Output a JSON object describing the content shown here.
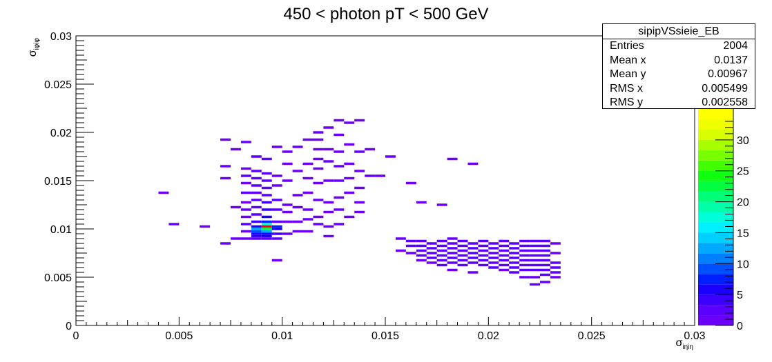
{
  "chart_data": {
    "type": "heatmap",
    "title": "450 < photon pT < 500 GeV",
    "xlabel": "σiηiη",
    "ylabel": "σiφiφ",
    "xlim": [
      0,
      0.03
    ],
    "ylim": [
      0,
      0.03
    ],
    "x_ticks": [
      "0",
      "0.005",
      "0.01",
      "0.015",
      "0.02",
      "0.025",
      "0.03"
    ],
    "y_ticks": [
      "0",
      "0.005",
      "0.01",
      "0.015",
      "0.02",
      "0.025",
      "0.03"
    ],
    "bin_width": 0.0005,
    "bin_height": 0.00025,
    "z_range": [
      0,
      35
    ],
    "z_ticks": [
      "0",
      "5",
      "10",
      "15",
      "20",
      "25",
      "30"
    ],
    "palette": [
      "#6a00f8",
      "#5a00ff",
      "#3a00ff",
      "#1a00ff",
      "#0020ff",
      "#0050ff",
      "#0080ff",
      "#00a8ff",
      "#00d0ff",
      "#00f0ff",
      "#00ffd8",
      "#00ffa8",
      "#00ff78",
      "#00ff40",
      "#10ff10",
      "#40ff00",
      "#78ff00",
      "#a8ff00",
      "#d8ff00",
      "#f0ff00",
      "#ffff00"
    ],
    "bins": [
      [
        0.00425,
        0.01375,
        1
      ],
      [
        0.00475,
        0.0105,
        1
      ],
      [
        0.00625,
        0.01025,
        1
      ],
      [
        0.00725,
        0.01925,
        1
      ],
      [
        0.00725,
        0.0165,
        1
      ],
      [
        0.00725,
        0.01525,
        1
      ],
      [
        0.00725,
        0.0085,
        1
      ],
      [
        0.00775,
        0.01825,
        1
      ],
      [
        0.00775,
        0.01225,
        1
      ],
      [
        0.00775,
        0.009,
        1
      ],
      [
        0.00825,
        0.019,
        1
      ],
      [
        0.00825,
        0.01625,
        1
      ],
      [
        0.00825,
        0.01475,
        1
      ],
      [
        0.00825,
        0.0155,
        2
      ],
      [
        0.00825,
        0.01375,
        2
      ],
      [
        0.00825,
        0.01275,
        1
      ],
      [
        0.00825,
        0.012,
        1
      ],
      [
        0.00825,
        0.01125,
        1
      ],
      [
        0.00825,
        0.0105,
        2
      ],
      [
        0.00825,
        0.00975,
        1
      ],
      [
        0.00825,
        0.009,
        1
      ],
      [
        0.00875,
        0.0175,
        2
      ],
      [
        0.00875,
        0.016,
        2
      ],
      [
        0.00875,
        0.01525,
        3
      ],
      [
        0.00875,
        0.0145,
        3
      ],
      [
        0.00875,
        0.01375,
        3
      ],
      [
        0.00875,
        0.013,
        2
      ],
      [
        0.00875,
        0.01225,
        2
      ],
      [
        0.00875,
        0.0115,
        3
      ],
      [
        0.00875,
        0.01075,
        4
      ],
      [
        0.00875,
        0.01025,
        6
      ],
      [
        0.00875,
        0.01,
        12
      ],
      [
        0.00875,
        0.00975,
        9
      ],
      [
        0.00875,
        0.0095,
        5
      ],
      [
        0.00875,
        0.00925,
        4
      ],
      [
        0.00875,
        0.009,
        3
      ],
      [
        0.00925,
        0.01725,
        2
      ],
      [
        0.00925,
        0.01575,
        2
      ],
      [
        0.00925,
        0.015,
        3
      ],
      [
        0.00925,
        0.01425,
        3
      ],
      [
        0.00925,
        0.0135,
        3
      ],
      [
        0.00925,
        0.01275,
        4
      ],
      [
        0.00925,
        0.012,
        4
      ],
      [
        0.00925,
        0.01125,
        5
      ],
      [
        0.00925,
        0.01075,
        8
      ],
      [
        0.00925,
        0.0105,
        18
      ],
      [
        0.00925,
        0.01025,
        34
      ],
      [
        0.00925,
        0.01,
        22
      ],
      [
        0.00925,
        0.00975,
        12
      ],
      [
        0.00925,
        0.0095,
        6
      ],
      [
        0.00925,
        0.00925,
        5
      ],
      [
        0.00925,
        0.009,
        3
      ],
      [
        0.00975,
        0.0185,
        1
      ],
      [
        0.00975,
        0.0155,
        1
      ],
      [
        0.00975,
        0.0145,
        1
      ],
      [
        0.00975,
        0.013,
        2
      ],
      [
        0.00975,
        0.012,
        2
      ],
      [
        0.00975,
        0.01075,
        3
      ],
      [
        0.00975,
        0.01025,
        8
      ],
      [
        0.00975,
        0.01,
        6
      ],
      [
        0.00975,
        0.0095,
        4
      ],
      [
        0.00975,
        0.009,
        2
      ],
      [
        0.00975,
        0.00675,
        1
      ],
      [
        0.01025,
        0.018,
        1
      ],
      [
        0.01025,
        0.01675,
        1
      ],
      [
        0.01025,
        0.015,
        1
      ],
      [
        0.01025,
        0.0125,
        1
      ],
      [
        0.01025,
        0.01175,
        1
      ],
      [
        0.01025,
        0.01075,
        1
      ],
      [
        0.01025,
        0.0095,
        1
      ],
      [
        0.01075,
        0.0185,
        1
      ],
      [
        0.01075,
        0.016,
        1
      ],
      [
        0.01075,
        0.0135,
        1
      ],
      [
        0.01075,
        0.01225,
        1
      ],
      [
        0.01075,
        0.01075,
        1
      ],
      [
        0.01075,
        0.00975,
        1
      ],
      [
        0.01125,
        0.01925,
        1
      ],
      [
        0.01125,
        0.01675,
        1
      ],
      [
        0.01125,
        0.01525,
        1
      ],
      [
        0.01125,
        0.01375,
        1
      ],
      [
        0.01125,
        0.012,
        1
      ],
      [
        0.01125,
        0.011,
        1
      ],
      [
        0.01125,
        0.00975,
        1
      ],
      [
        0.01175,
        0.02,
        1
      ],
      [
        0.01175,
        0.01925,
        1
      ],
      [
        0.01175,
        0.01825,
        1
      ],
      [
        0.01175,
        0.01725,
        1
      ],
      [
        0.01175,
        0.01625,
        1
      ],
      [
        0.01175,
        0.01475,
        1
      ],
      [
        0.01175,
        0.013,
        1
      ],
      [
        0.01175,
        0.01125,
        1
      ],
      [
        0.01175,
        0.0105,
        1
      ],
      [
        0.01225,
        0.0205,
        1
      ],
      [
        0.01225,
        0.01825,
        1
      ],
      [
        0.01225,
        0.017,
        1
      ],
      [
        0.01225,
        0.015,
        1
      ],
      [
        0.01225,
        0.01275,
        1
      ],
      [
        0.01225,
        0.01175,
        1
      ],
      [
        0.01225,
        0.01025,
        1
      ],
      [
        0.01225,
        0.00925,
        1
      ],
      [
        0.01275,
        0.02125,
        1
      ],
      [
        0.01275,
        0.01975,
        1
      ],
      [
        0.01275,
        0.018,
        1
      ],
      [
        0.01275,
        0.0165,
        1
      ],
      [
        0.01275,
        0.015,
        1
      ],
      [
        0.01275,
        0.01325,
        1
      ],
      [
        0.01275,
        0.012,
        1
      ],
      [
        0.01275,
        0.0105,
        1
      ],
      [
        0.01325,
        0.021,
        1
      ],
      [
        0.01325,
        0.01875,
        1
      ],
      [
        0.01325,
        0.01675,
        1
      ],
      [
        0.01325,
        0.01525,
        1
      ],
      [
        0.01325,
        0.01375,
        1
      ],
      [
        0.01325,
        0.01125,
        1
      ],
      [
        0.01375,
        0.02125,
        1
      ],
      [
        0.01375,
        0.018,
        1
      ],
      [
        0.01375,
        0.016,
        1
      ],
      [
        0.01375,
        0.01425,
        1
      ],
      [
        0.01375,
        0.01275,
        1
      ],
      [
        0.01375,
        0.01175,
        1
      ],
      [
        0.01425,
        0.01825,
        1
      ],
      [
        0.01425,
        0.0155,
        1
      ],
      [
        0.01475,
        0.0155,
        1
      ],
      [
        0.01525,
        0.0175,
        1
      ],
      [
        0.01625,
        0.01475,
        1
      ],
      [
        0.01675,
        0.01275,
        1
      ],
      [
        0.01775,
        0.0125,
        1
      ],
      [
        0.01825,
        0.01725,
        1
      ],
      [
        0.01925,
        0.01675,
        1
      ],
      [
        0.01575,
        0.009,
        1
      ],
      [
        0.01575,
        0.00775,
        1
      ],
      [
        0.01625,
        0.00875,
        2
      ],
      [
        0.01625,
        0.00825,
        2
      ],
      [
        0.01625,
        0.0075,
        1
      ],
      [
        0.01675,
        0.00875,
        2
      ],
      [
        0.01675,
        0.00825,
        2
      ],
      [
        0.01675,
        0.00775,
        2
      ],
      [
        0.01675,
        0.00725,
        2
      ],
      [
        0.01675,
        0.00675,
        1
      ],
      [
        0.01725,
        0.0085,
        3
      ],
      [
        0.01725,
        0.008,
        2
      ],
      [
        0.01725,
        0.0075,
        3
      ],
      [
        0.01725,
        0.007,
        2
      ],
      [
        0.01725,
        0.0065,
        1
      ],
      [
        0.01775,
        0.00875,
        2
      ],
      [
        0.01775,
        0.00825,
        3
      ],
      [
        0.01775,
        0.00775,
        3
      ],
      [
        0.01775,
        0.00725,
        3
      ],
      [
        0.01775,
        0.00675,
        2
      ],
      [
        0.01775,
        0.00625,
        2
      ],
      [
        0.01825,
        0.009,
        1
      ],
      [
        0.01825,
        0.0085,
        2
      ],
      [
        0.01825,
        0.008,
        3
      ],
      [
        0.01825,
        0.0075,
        3
      ],
      [
        0.01825,
        0.007,
        3
      ],
      [
        0.01825,
        0.0065,
        2
      ],
      [
        0.01825,
        0.00575,
        1
      ],
      [
        0.01875,
        0.00875,
        2
      ],
      [
        0.01875,
        0.00825,
        3
      ],
      [
        0.01875,
        0.00775,
        3
      ],
      [
        0.01875,
        0.00725,
        3
      ],
      [
        0.01875,
        0.00675,
        2
      ],
      [
        0.01875,
        0.00625,
        2
      ],
      [
        0.01925,
        0.0085,
        2
      ],
      [
        0.01925,
        0.008,
        3
      ],
      [
        0.01925,
        0.0075,
        3
      ],
      [
        0.01925,
        0.007,
        3
      ],
      [
        0.01925,
        0.0065,
        2
      ],
      [
        0.01925,
        0.0055,
        1
      ],
      [
        0.01975,
        0.00875,
        2
      ],
      [
        0.01975,
        0.00825,
        3
      ],
      [
        0.01975,
        0.00775,
        2
      ],
      [
        0.01975,
        0.00725,
        3
      ],
      [
        0.01975,
        0.00675,
        2
      ],
      [
        0.01975,
        0.00625,
        2
      ],
      [
        0.02025,
        0.0085,
        2
      ],
      [
        0.02025,
        0.008,
        2
      ],
      [
        0.02025,
        0.0075,
        3
      ],
      [
        0.02025,
        0.007,
        3
      ],
      [
        0.02025,
        0.0065,
        2
      ],
      [
        0.02025,
        0.006,
        2
      ],
      [
        0.02075,
        0.00875,
        2
      ],
      [
        0.02075,
        0.00825,
        3
      ],
      [
        0.02075,
        0.00775,
        3
      ],
      [
        0.02075,
        0.00725,
        3
      ],
      [
        0.02075,
        0.00675,
        3
      ],
      [
        0.02075,
        0.00625,
        2
      ],
      [
        0.02075,
        0.00575,
        1
      ],
      [
        0.02125,
        0.0085,
        2
      ],
      [
        0.02125,
        0.008,
        3
      ],
      [
        0.02125,
        0.0075,
        3
      ],
      [
        0.02125,
        0.007,
        3
      ],
      [
        0.02125,
        0.0065,
        3
      ],
      [
        0.02125,
        0.006,
        2
      ],
      [
        0.02125,
        0.0055,
        2
      ],
      [
        0.02175,
        0.00875,
        2
      ],
      [
        0.02175,
        0.00825,
        3
      ],
      [
        0.02175,
        0.00775,
        3
      ],
      [
        0.02175,
        0.00725,
        3
      ],
      [
        0.02175,
        0.00675,
        3
      ],
      [
        0.02175,
        0.00625,
        3
      ],
      [
        0.02175,
        0.00575,
        2
      ],
      [
        0.02175,
        0.005,
        1
      ],
      [
        0.02225,
        0.00875,
        2
      ],
      [
        0.02225,
        0.00825,
        3
      ],
      [
        0.02225,
        0.00775,
        3
      ],
      [
        0.02225,
        0.00725,
        3
      ],
      [
        0.02225,
        0.00675,
        3
      ],
      [
        0.02225,
        0.00625,
        3
      ],
      [
        0.02225,
        0.00575,
        2
      ],
      [
        0.02225,
        0.005,
        1
      ],
      [
        0.02225,
        0.00425,
        1
      ],
      [
        0.02275,
        0.00875,
        2
      ],
      [
        0.02275,
        0.00825,
        2
      ],
      [
        0.02275,
        0.00775,
        2
      ],
      [
        0.02275,
        0.00725,
        3
      ],
      [
        0.02275,
        0.00675,
        3
      ],
      [
        0.02275,
        0.00625,
        3
      ],
      [
        0.02275,
        0.00575,
        3
      ],
      [
        0.02275,
        0.00525,
        2
      ],
      [
        0.02275,
        0.0045,
        1
      ],
      [
        0.02325,
        0.0085,
        1
      ],
      [
        0.02325,
        0.0075,
        1
      ],
      [
        0.02325,
        0.0065,
        2
      ],
      [
        0.02325,
        0.006,
        2
      ],
      [
        0.02325,
        0.0055,
        2
      ],
      [
        0.02325,
        0.005,
        1
      ]
    ]
  },
  "stats": {
    "title": "sipipVSsieie_EB",
    "rows": [
      {
        "label": "Entries",
        "value": "2004"
      },
      {
        "label": "Mean x",
        "value": "0.0137"
      },
      {
        "label": "Mean y",
        "value": "0.00967"
      },
      {
        "label": "RMS x",
        "value": "0.005499"
      },
      {
        "label": "RMS y",
        "value": "0.002558"
      }
    ]
  }
}
